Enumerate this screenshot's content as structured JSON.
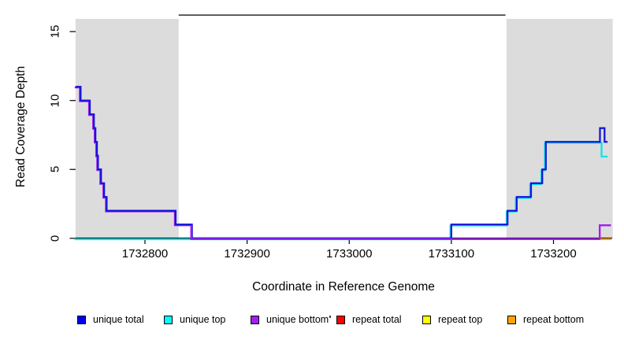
{
  "chart_data": {
    "type": "line",
    "style": "step-coverage-plot",
    "xlabel": "Coordinate in Reference Genome",
    "ylabel": "Read Coverage Depth",
    "x_axis": {
      "range": [
        1732732,
        1733258
      ],
      "ticks": [
        1732800,
        1732900,
        1733000,
        1733100,
        1733200
      ],
      "tick_labels": [
        "1732800",
        "1732900",
        "1733000",
        "1733100",
        "1733200"
      ]
    },
    "y_axis": {
      "range": [
        0,
        16.2
      ],
      "ticks": [
        0,
        5,
        10,
        15
      ],
      "tick_labels": [
        "0",
        "5",
        "10",
        "15"
      ]
    },
    "grid": false,
    "shaded_regions": [
      {
        "name": "left-shaded-region",
        "x0": 1732732,
        "x1": 1732833,
        "color": "#dcdcdc"
      },
      {
        "name": "right-shaded-region",
        "x0": 1733154,
        "x1": 1733258,
        "color": "#dcdcdc"
      }
    ],
    "top_boundary_segment": {
      "x0": 1732833,
      "x1": 1733153,
      "depth": 16.2,
      "color": "#000000"
    },
    "series": [
      {
        "name": "unique total",
        "color": "#1414d8",
        "points": [
          [
            1732732,
            11
          ],
          [
            1732737,
            11
          ],
          [
            1732737,
            10
          ],
          [
            1732746,
            10
          ],
          [
            1732746,
            9
          ],
          [
            1732750,
            9
          ],
          [
            1732750,
            8
          ],
          [
            1732751.5,
            8
          ],
          [
            1732751.5,
            7
          ],
          [
            1732753,
            7
          ],
          [
            1732753,
            6
          ],
          [
            1732754,
            6
          ],
          [
            1732754,
            5
          ],
          [
            1732757,
            5
          ],
          [
            1732757,
            4
          ],
          [
            1732760,
            4
          ],
          [
            1732760,
            3
          ],
          [
            1732762.5,
            3
          ],
          [
            1732762.5,
            2
          ],
          [
            1732830,
            2
          ],
          [
            1732830,
            1
          ],
          [
            1732846,
            1
          ],
          [
            1732846,
            0
          ],
          [
            1733100,
            0
          ],
          [
            1733100,
            1
          ],
          [
            1733155,
            1
          ],
          [
            1733155,
            2
          ],
          [
            1733164,
            2
          ],
          [
            1733164,
            3
          ],
          [
            1733178,
            3
          ],
          [
            1733178,
            4
          ],
          [
            1733189,
            4
          ],
          [
            1733189,
            5
          ],
          [
            1733192.5,
            5
          ],
          [
            1733192.5,
            7
          ],
          [
            1733245.5,
            7
          ],
          [
            1733245.5,
            8
          ],
          [
            1733250,
            8
          ],
          [
            1733250,
            7
          ],
          [
            1733253,
            7
          ]
        ]
      },
      {
        "name": "unique top",
        "color": "#00e8ee",
        "points": [
          [
            1732732,
            0
          ],
          [
            1733100,
            0
          ],
          [
            1733100,
            1
          ],
          [
            1733155,
            1
          ],
          [
            1733155,
            2
          ],
          [
            1733164,
            2
          ],
          [
            1733164,
            3
          ],
          [
            1733178,
            3
          ],
          [
            1733178,
            4
          ],
          [
            1733189,
            4
          ],
          [
            1733189,
            5
          ],
          [
            1733192.5,
            5
          ],
          [
            1733192.5,
            7
          ],
          [
            1733248,
            7
          ],
          [
            1733248,
            6
          ],
          [
            1733254,
            6
          ]
        ]
      },
      {
        "name": "unique bottom",
        "color": "#a020f0",
        "points": [
          [
            1732732,
            11
          ],
          [
            1732737,
            11
          ],
          [
            1732737,
            10
          ],
          [
            1732746,
            10
          ],
          [
            1732746,
            9
          ],
          [
            1732750,
            9
          ],
          [
            1732750,
            8
          ],
          [
            1732751.5,
            8
          ],
          [
            1732751.5,
            7
          ],
          [
            1732753,
            7
          ],
          [
            1732753,
            6
          ],
          [
            1732754,
            6
          ],
          [
            1732754,
            5
          ],
          [
            1732757,
            5
          ],
          [
            1732757,
            4
          ],
          [
            1732760,
            4
          ],
          [
            1732760,
            3
          ],
          [
            1732762.5,
            3
          ],
          [
            1732762.5,
            2
          ],
          [
            1732830,
            2
          ],
          [
            1732830,
            1
          ],
          [
            1732846,
            1
          ],
          [
            1732846,
            0
          ],
          [
            1733246,
            0
          ],
          [
            1733246,
            1
          ],
          [
            1733257,
            1
          ]
        ]
      },
      {
        "name": "repeat total",
        "color": "#ee0000",
        "points": []
      },
      {
        "name": "repeat top",
        "color": "#ffff00",
        "points": []
      },
      {
        "name": "repeat bottom",
        "color": "#ffa500",
        "points": [
          [
            1733246,
            0
          ],
          [
            1733257,
            0
          ]
        ]
      }
    ],
    "legend": {
      "position": "bottom",
      "entries": [
        {
          "label": "unique total",
          "color": "#0000ee"
        },
        {
          "label": "unique top",
          "color": "#00ffff"
        },
        {
          "label": "unique bottom",
          "color": "#a020f0"
        },
        {
          "label": "repeat total",
          "color": "#ff0000"
        },
        {
          "label": "repeat top",
          "color": "#ffff00"
        },
        {
          "label": "repeat bottom",
          "color": "#ffa500"
        }
      ],
      "has_artifact_dot": true
    }
  }
}
